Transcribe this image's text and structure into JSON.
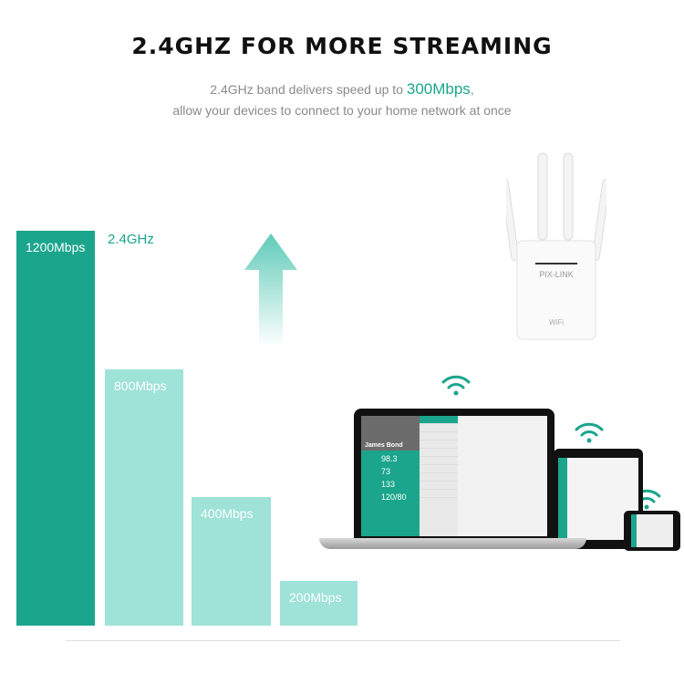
{
  "header": {
    "title": "2.4GHZ FOR MORE STREAMING",
    "subtitle_pre": "2.4GHz band delivers speed up to ",
    "subtitle_highlight": "300Mbps",
    "subtitle_post": ",",
    "subtitle_line2": "allow your devices to connect to your home network at once"
  },
  "bars": [
    {
      "label": "1200Mbps",
      "color": "#1ba58c"
    },
    {
      "label": "800Mbps",
      "color": "#9ee2d8"
    },
    {
      "label": "400Mbps",
      "color": "#9ee2d8"
    },
    {
      "label": "200Mbps",
      "color": "#9ee2d8"
    }
  ],
  "band_label": "2.4GHz",
  "router": {
    "brand": "PIX-LINK",
    "logo": "WiFi"
  },
  "laptop_screen": {
    "name": "James Bond",
    "stats": [
      "98.3",
      "73",
      "133",
      "120/80"
    ]
  },
  "accent": "#1ba58c",
  "icons": [
    "up-arrow-icon",
    "wifi-icon"
  ]
}
